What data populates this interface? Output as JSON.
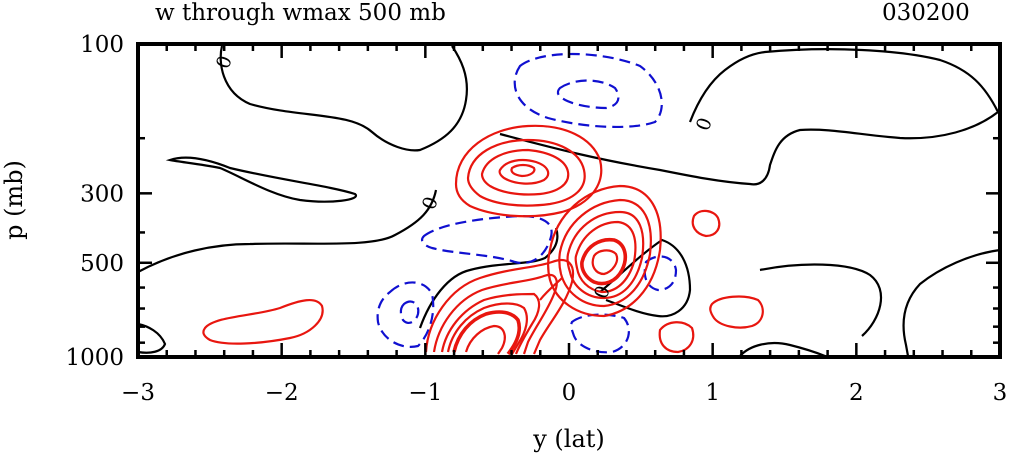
{
  "chart_data": {
    "type": "contour",
    "title": "w through wmax 500 mb",
    "time_label": "030200",
    "xlabel": "y (lat)",
    "ylabel": "p (mb)",
    "xlim": [
      -3,
      3
    ],
    "ylim": [
      100,
      1000
    ],
    "y_scale": "log",
    "x_ticks": [
      -3,
      -2,
      -1,
      0,
      1,
      2,
      3
    ],
    "x_tick_labels": [
      "−3",
      "−2",
      "−1",
      "0",
      "1",
      "2",
      "3"
    ],
    "y_ticks": [
      100,
      300,
      500,
      1000
    ],
    "y_tick_labels": [
      "100",
      "300",
      "500",
      "1000"
    ],
    "contour_labels": [
      "0",
      "0",
      "0",
      "0"
    ],
    "colors": {
      "positive": "#e8160f",
      "negative": "#1010d0",
      "zero": "#000000"
    },
    "line_styles": {
      "positive": "solid",
      "negative": "dashed",
      "zero": "solid"
    },
    "grid": false,
    "legend": "none"
  }
}
